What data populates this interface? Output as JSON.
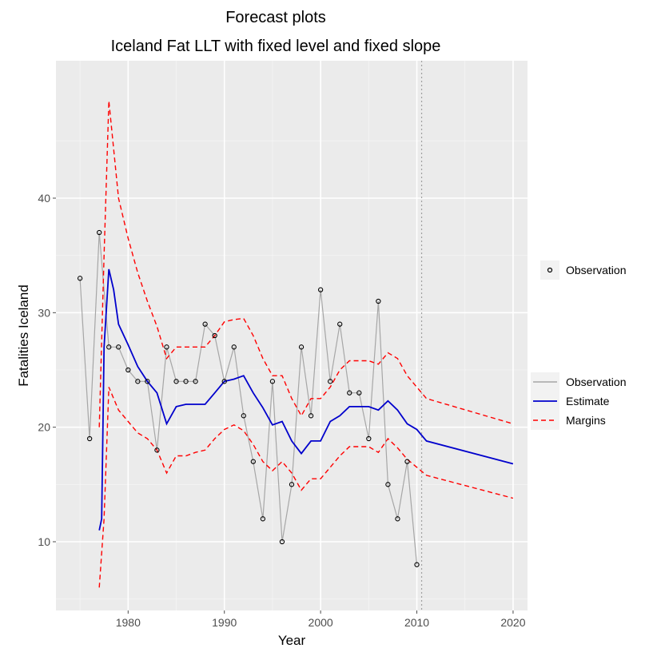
{
  "chart_data": {
    "type": "line",
    "title": "Forecast plots",
    "subtitle": "Iceland Fat LLT with fixed level and fixed slope",
    "xlabel": "Year",
    "ylabel": "Fatalities Iceland",
    "xlim": [
      1972.5,
      2021.5
    ],
    "ylim": [
      4,
      52
    ],
    "x_ticks": [
      1980,
      1990,
      2000,
      2010,
      2020
    ],
    "y_ticks": [
      10,
      20,
      30,
      40
    ],
    "grid": true,
    "forecast_start": 2010.5,
    "legend_points": {
      "label": "Observation"
    },
    "legend_lines": [
      {
        "label": "Observation",
        "color": "#a6a6a6",
        "dash": "solid"
      },
      {
        "label": "Estimate",
        "color": "#0000cc",
        "dash": "solid"
      },
      {
        "label": "Margins",
        "color": "#ff0000",
        "dash": "dashed"
      }
    ],
    "observation": {
      "x": [
        1975,
        1976,
        1977,
        1978,
        1979,
        1980,
        1981,
        1982,
        1983,
        1984,
        1985,
        1986,
        1987,
        1988,
        1989,
        1990,
        1991,
        1992,
        1993,
        1994,
        1995,
        1996,
        1997,
        1998,
        1999,
        2000,
        2001,
        2002,
        2003,
        2004,
        2005,
        2006,
        2007,
        2008,
        2009,
        2010
      ],
      "y": [
        33,
        19,
        37,
        27,
        27,
        25,
        24,
        24,
        18,
        27,
        24,
        24,
        24,
        29,
        28,
        24,
        27,
        21,
        17,
        12,
        24,
        10,
        15,
        27,
        21,
        32,
        24,
        29,
        23,
        23,
        19,
        31,
        15,
        12,
        17,
        8
      ]
    },
    "estimate": {
      "x": [
        1977,
        1977.25,
        1977.5,
        1978,
        1978.5,
        1979,
        1980,
        1981,
        1982,
        1983,
        1984,
        1985,
        1986,
        1987,
        1988,
        1989,
        1990,
        1991,
        1992,
        1993,
        1994,
        1995,
        1996,
        1997,
        1998,
        1999,
        2000,
        2001,
        2002,
        2003,
        2004,
        2005,
        2006,
        2007,
        2008,
        2009,
        2010,
        2011,
        2020
      ],
      "y": [
        11,
        12,
        27,
        33.8,
        32,
        29,
        27.2,
        25.3,
        24,
        23,
        20.3,
        21.8,
        22,
        22,
        22,
        23,
        24,
        24.2,
        24.5,
        23,
        21.7,
        20.2,
        20.5,
        18.8,
        17.7,
        18.8,
        18.8,
        20.5,
        21,
        21.8,
        21.8,
        21.8,
        21.5,
        22.3,
        21.5,
        20.3,
        19.8,
        18.8,
        16.8
      ]
    },
    "upper_margin": {
      "x": [
        1977,
        1977.5,
        1978,
        1979,
        1980,
        1981,
        1982,
        1983,
        1984,
        1985,
        1986,
        1987,
        1988,
        1989,
        1990,
        1991,
        1992,
        1993,
        1994,
        1995,
        1996,
        1997,
        1998,
        1999,
        2000,
        2001,
        2002,
        2003,
        2004,
        2005,
        2006,
        2007,
        2008,
        2009,
        2010,
        2011,
        2020
      ],
      "y": [
        20,
        35,
        48.5,
        40,
        36.5,
        33.5,
        31,
        28.8,
        26,
        27,
        27,
        27,
        27,
        28,
        29.2,
        29.4,
        29.5,
        28,
        26,
        24.5,
        24.5,
        22.5,
        21,
        22.5,
        22.5,
        23.5,
        25,
        25.8,
        25.8,
        25.8,
        25.5,
        26.5,
        26,
        24.5,
        23.5,
        22.5,
        20.3
      ]
    },
    "lower_margin": {
      "x": [
        1977,
        1977.5,
        1978,
        1979,
        1980,
        1981,
        1982,
        1983,
        1984,
        1985,
        1986,
        1987,
        1988,
        1989,
        1990,
        1991,
        1992,
        1993,
        1994,
        1995,
        1996,
        1997,
        1998,
        1999,
        2000,
        2001,
        2002,
        2003,
        2004,
        2005,
        2006,
        2007,
        2008,
        2009,
        2010,
        2011,
        2020
      ],
      "y": [
        6,
        12,
        23.5,
        21.5,
        20.5,
        19.5,
        19,
        18,
        16,
        17.5,
        17.5,
        17.8,
        18,
        19,
        19.8,
        20.2,
        19.7,
        18.5,
        17,
        16.2,
        17,
        16,
        14.5,
        15.5,
        15.5,
        16.5,
        17.5,
        18.3,
        18.3,
        18.3,
        17.8,
        19,
        18.2,
        17.2,
        16.5,
        15.8,
        13.8
      ]
    }
  }
}
